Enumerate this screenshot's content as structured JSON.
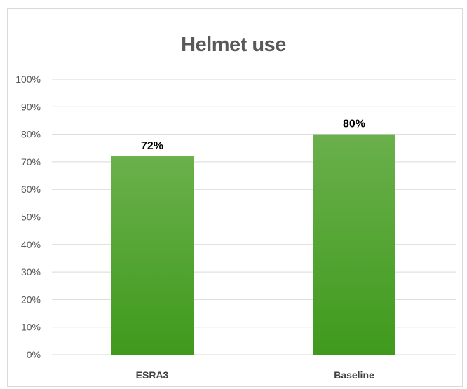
{
  "chart_data": {
    "type": "bar",
    "title": "Helmet use",
    "categories": [
      "ESRA3",
      "Baseline"
    ],
    "values": [
      72,
      80
    ],
    "data_labels": [
      "72%",
      "80%"
    ],
    "ylim": [
      0,
      100
    ],
    "yticks": [
      "0%",
      "10%",
      "20%",
      "30%",
      "40%",
      "50%",
      "60%",
      "70%",
      "80%",
      "90%",
      "100%"
    ],
    "xlabel": "",
    "ylabel": "",
    "grid": true,
    "legend": "none",
    "bar_color_top": "#6ab04c",
    "bar_color_bottom": "#3f9a1c",
    "grid_color": "#d9d9d9"
  }
}
